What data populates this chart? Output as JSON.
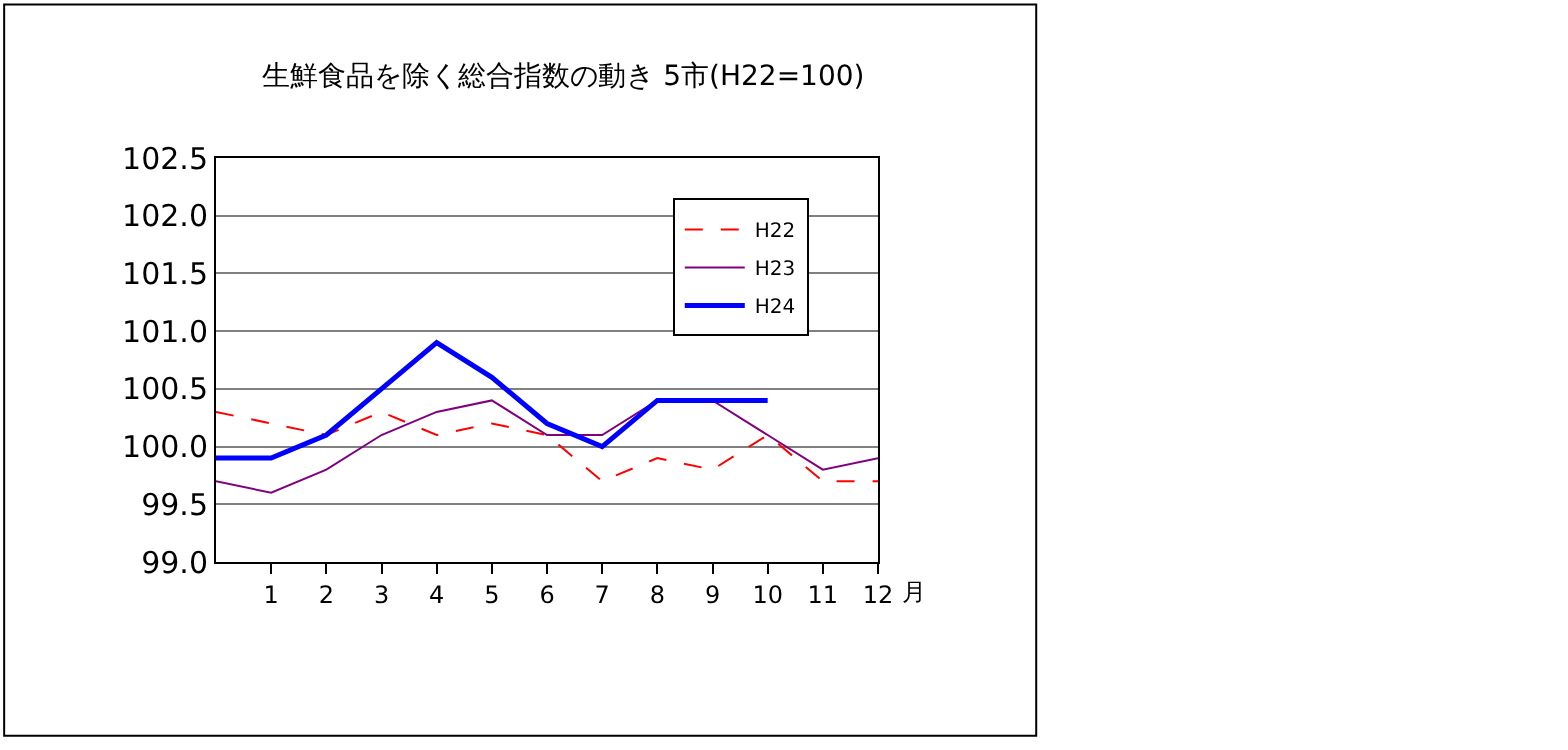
{
  "chart_data": {
    "type": "line",
    "title": "生鮮食品を除く総合指数の動き 5市(H22=100)",
    "xlabel": "月",
    "x": [
      0,
      1,
      2,
      3,
      4,
      5,
      6,
      7,
      8,
      9,
      10,
      11,
      12
    ],
    "series": [
      {
        "name": "H22",
        "color": "#ff0000",
        "line_style": "dashed",
        "values": [
          100.3,
          100.2,
          100.1,
          100.3,
          100.1,
          100.2,
          100.1,
          99.7,
          99.9,
          99.8,
          100.1,
          99.7,
          99.7
        ]
      },
      {
        "name": "H23",
        "color": "#800080",
        "line_style": "solid",
        "values": [
          99.7,
          99.6,
          99.8,
          100.1,
          100.3,
          100.4,
          100.1,
          100.1,
          100.4,
          100.4,
          100.1,
          99.8,
          99.9
        ]
      },
      {
        "name": "H24",
        "color": "#0000ff",
        "line_style": "solid",
        "values": [
          99.9,
          99.9,
          100.1,
          100.5,
          100.9,
          100.6,
          100.2,
          100.0,
          100.4,
          100.4,
          100.4,
          null,
          null
        ]
      }
    ],
    "xlim": [
      0,
      12
    ],
    "xticks": [
      1,
      2,
      3,
      4,
      5,
      6,
      7,
      8,
      9,
      10,
      11,
      12
    ],
    "ylim": [
      99.0,
      102.5
    ],
    "yticks": [
      {
        "value": 99.0,
        "label": "99.0"
      },
      {
        "value": 99.5,
        "label": "99.5"
      },
      {
        "value": 100.0,
        "label": "100.0"
      },
      {
        "value": 100.5,
        "label": "100.5"
      },
      {
        "value": 101.0,
        "label": "101.0"
      },
      {
        "value": 101.5,
        "label": "101.5"
      },
      {
        "value": 102.0,
        "label": "102.0"
      },
      {
        "value": 102.5,
        "label": "102.5"
      }
    ],
    "grid": "y",
    "legend": "top right",
    "marker": "none"
  }
}
